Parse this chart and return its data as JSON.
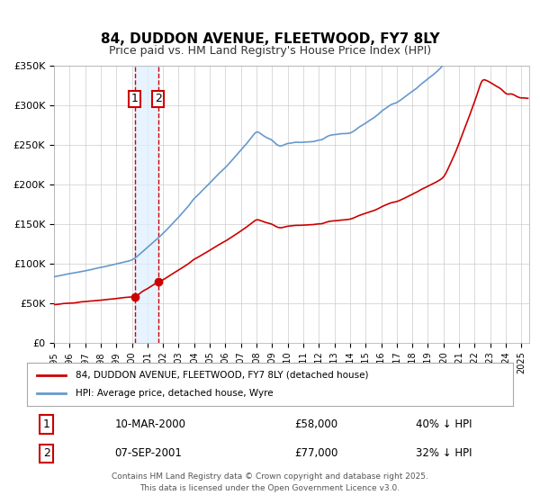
{
  "title": "84, DUDDON AVENUE, FLEETWOOD, FY7 8LY",
  "subtitle": "Price paid vs. HM Land Registry's House Price Index (HPI)",
  "legend_line1": "84, DUDDON AVENUE, FLEETWOOD, FY7 8LY (detached house)",
  "legend_line2": "HPI: Average price, detached house, Wyre",
  "footer": "Contains HM Land Registry data © Crown copyright and database right 2025.\nThis data is licensed under the Open Government Licence v3.0.",
  "transaction1_label": "1",
  "transaction2_label": "2",
  "transaction1_date": "10-MAR-2000",
  "transaction1_price": "£58,000",
  "transaction1_hpi": "40% ↓ HPI",
  "transaction2_date": "07-SEP-2001",
  "transaction2_price": "£77,000",
  "transaction2_hpi": "32% ↓ HPI",
  "transaction1_x": 2000.19,
  "transaction1_y": 58000,
  "transaction2_x": 2001.68,
  "transaction2_y": 77000,
  "vline1_x": 2000.19,
  "vline2_x": 2001.68,
  "color_red": "#cc0000",
  "color_blue": "#6699cc",
  "color_vshade": "#ddeeff",
  "color_vline": "#cc0000",
  "ylim": [
    0,
    350000
  ],
  "xlim_start": 1995.0,
  "xlim_end": 2025.5,
  "background_color": "#ffffff",
  "grid_color": "#cccccc"
}
